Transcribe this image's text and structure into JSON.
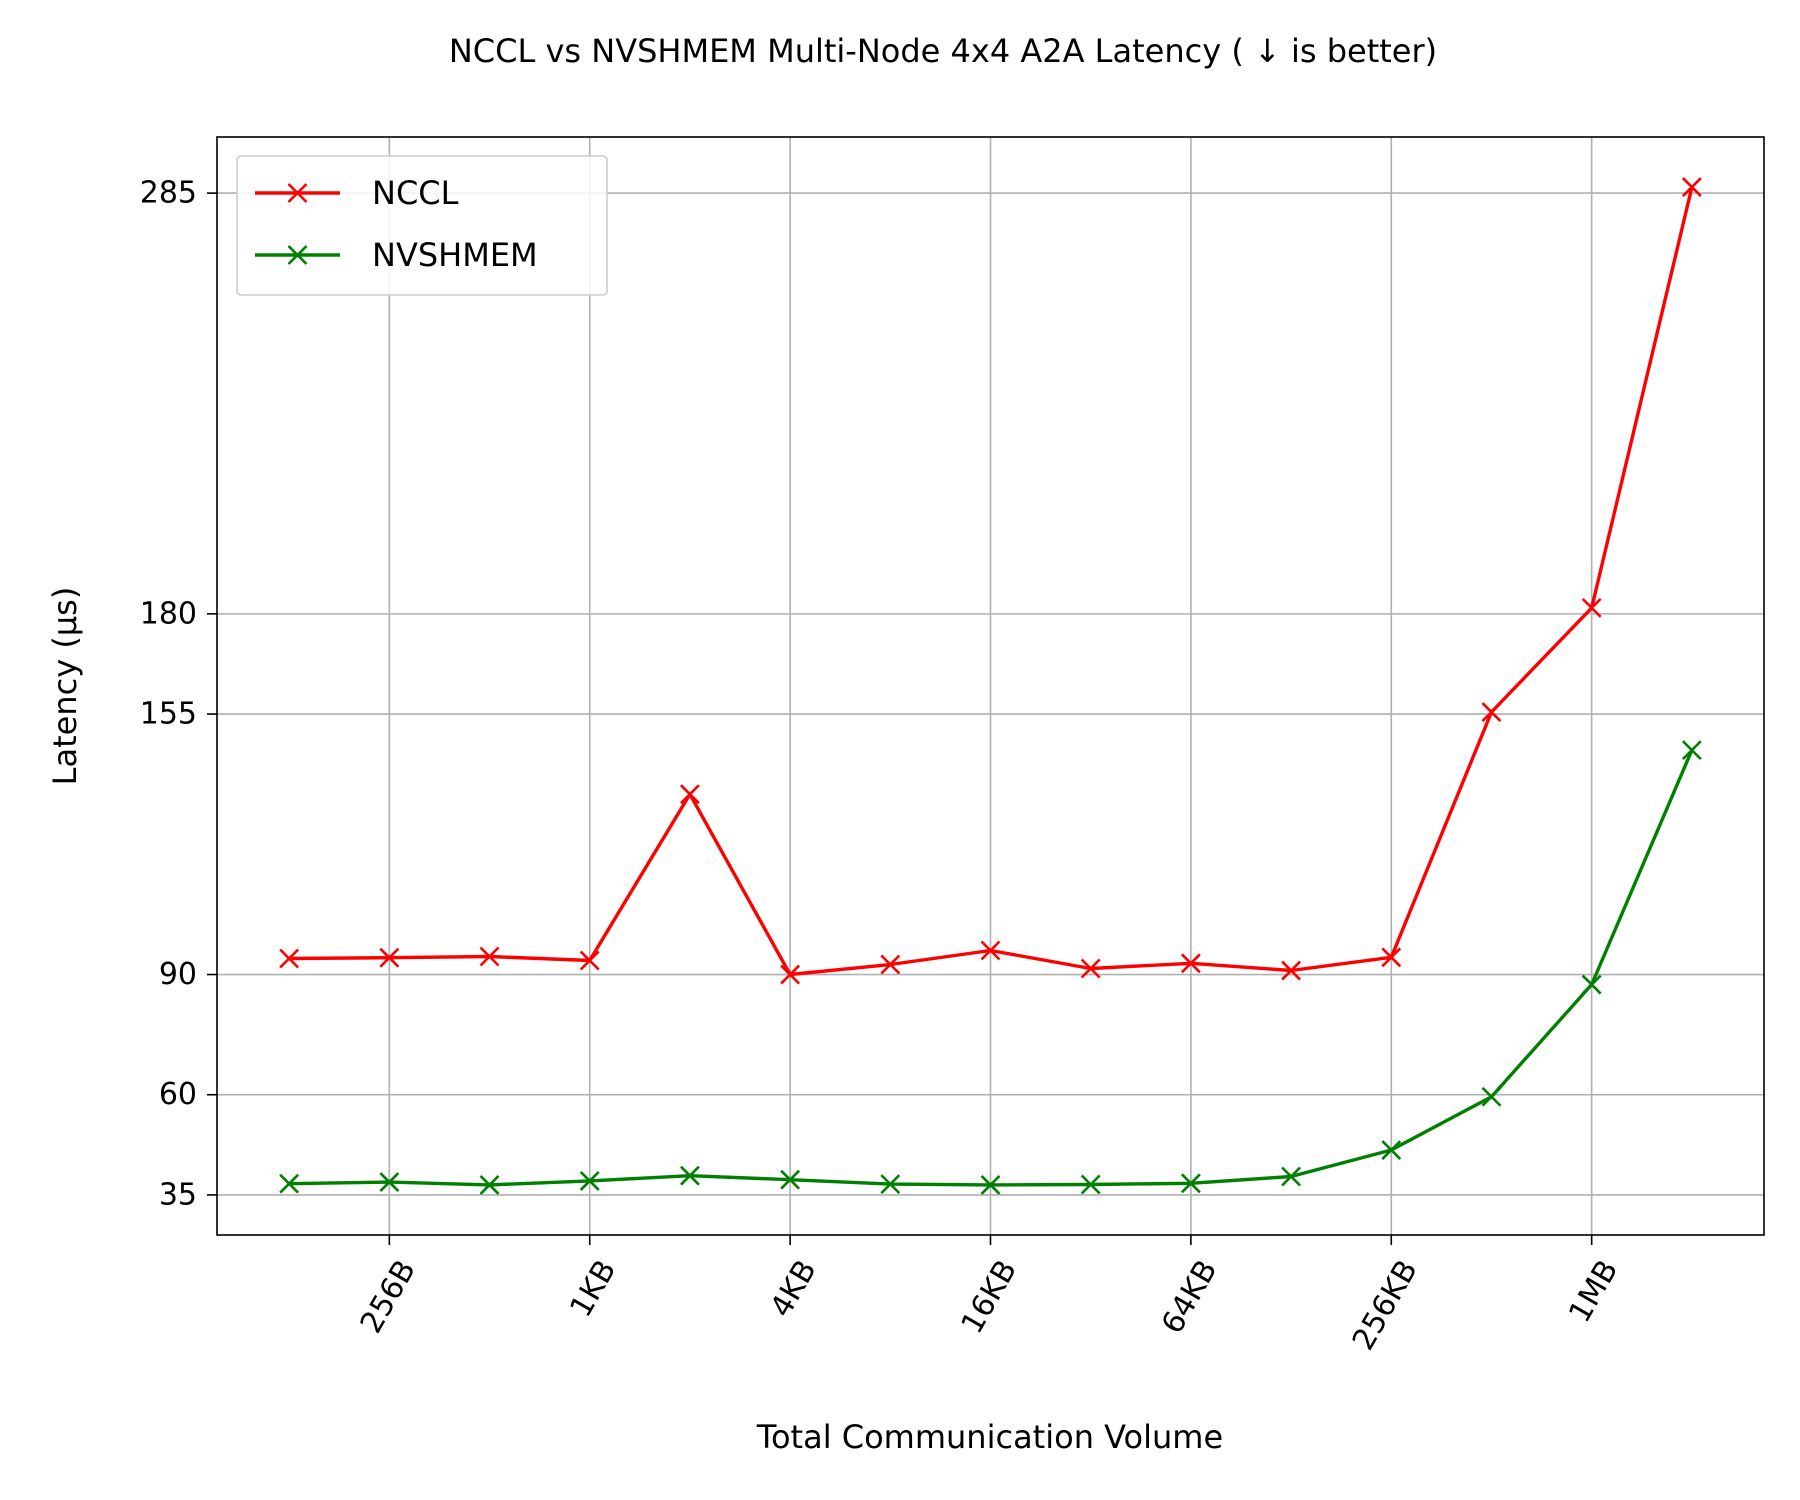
{
  "chart_data": {
    "type": "line",
    "title": "NCCL vs NVSHMEM Multi-Node 4x4 A2A Latency ( ↓  is better)",
    "xlabel": "Total Communication Volume",
    "ylabel": "Latency (μs)",
    "x_scale": "log2",
    "x_points": [
      128,
      256,
      512,
      1024,
      2048,
      4096,
      8192,
      16384,
      32768,
      65536,
      131072,
      262144,
      524288,
      1048576,
      2097152
    ],
    "x_ticks": [
      {
        "value": 256,
        "label": "256B"
      },
      {
        "value": 1024,
        "label": "1KB"
      },
      {
        "value": 4096,
        "label": "4KB"
      },
      {
        "value": 16384,
        "label": "16KB"
      },
      {
        "value": 65536,
        "label": "64KB"
      },
      {
        "value": 262144,
        "label": "256KB"
      },
      {
        "value": 1048576,
        "label": "1MB"
      }
    ],
    "y_ticks": [
      35,
      60,
      90,
      155,
      180,
      285
    ],
    "ylim": [
      25,
      299
    ],
    "grid": true,
    "legend_position": "top-left",
    "series": [
      {
        "name": "NCCL",
        "color": "#ff0000",
        "marker": "x",
        "values": [
          94,
          94.2,
          94.5,
          93.5,
          135,
          90,
          92.5,
          96,
          91.5,
          92.8,
          91,
          94.3,
          155.5,
          181.5,
          286.5
        ]
      },
      {
        "name": "NVSHMEM",
        "color": "#008000",
        "marker": "x",
        "values": [
          37.8,
          38.2,
          37.5,
          38.5,
          39.8,
          38.8,
          37.7,
          37.5,
          37.6,
          37.9,
          39.6,
          46.2,
          59.5,
          87.5,
          146
        ]
      }
    ]
  }
}
